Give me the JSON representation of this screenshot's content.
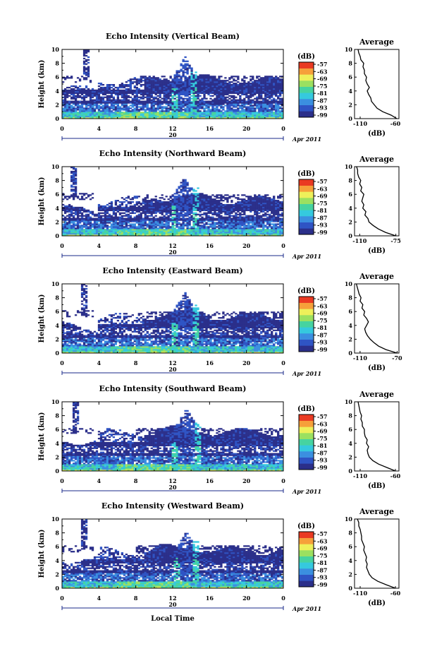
{
  "colors": {
    "colormap": [
      "#2b2f8a",
      "#2f54c4",
      "#3b8fe0",
      "#35c9de",
      "#46d3a0",
      "#9be060",
      "#eef05a",
      "#f6a03a",
      "#ea3a22"
    ],
    "background": "#ffffff",
    "axis": "#000000",
    "date_marker": "#1a2a8a"
  },
  "figure": {
    "colorbar_unit": "(dB)",
    "colorbar_ticks": [
      "-57",
      "-63",
      "-69",
      "-75",
      "-81",
      "-87",
      "-93",
      "-99"
    ],
    "time_tick_labels": [
      "0",
      "4",
      "8",
      "12",
      "16",
      "20",
      "0"
    ],
    "date_day": "20",
    "date_month": "Apr 2011",
    "height_ylabel": "Height (km)",
    "height_tick_labels": [
      "0",
      "2",
      "4",
      "6",
      "8",
      "10"
    ],
    "average_title": "Average",
    "average_xlabel": "(dB)",
    "xlabel": "Local Time"
  },
  "chart_data": [
    {
      "type": "heatmap",
      "title": "Echo Intensity (Vertical Beam)",
      "xlabel": "",
      "ylabel": "Height (km)",
      "xlim": [
        0,
        24
      ],
      "ylim": [
        0,
        10
      ],
      "colorbar_range": [
        -99,
        -57
      ],
      "features": {
        "main_top_km": 5.5,
        "upper_layer_km": [
          5.0,
          6.2
        ],
        "convection_hours": [
          12.0,
          14.7
        ],
        "convection_top_km": 9.0,
        "early_plume_hour": 2.6
      },
      "average_profile": {
        "xticks": [
          "-110",
          "-60"
        ],
        "xlim": [
          -118,
          -55
        ],
        "height": [
          0,
          0.5,
          1,
          1.5,
          2,
          2.5,
          3,
          3.5,
          4,
          4.5,
          5,
          5.5,
          6,
          6.5,
          7,
          7.5,
          8,
          8.5,
          9,
          9.5,
          10
        ],
        "value": [
          -58,
          -66,
          -78,
          -86,
          -90,
          -94,
          -95,
          -98,
          -100,
          -97,
          -100,
          -102,
          -101,
          -104,
          -104,
          -106,
          -105,
          -109,
          -110,
          -112,
          -113
        ]
      }
    },
    {
      "type": "heatmap",
      "title": "Echo Intensity (Northward Beam)",
      "xlabel": "",
      "ylabel": "Height (km)",
      "xlim": [
        0,
        24
      ],
      "ylim": [
        0,
        10
      ],
      "colorbar_range": [
        -99,
        -57
      ],
      "features": {
        "main_top_km": 5.2,
        "upper_layer_km": [
          4.8,
          6.0
        ],
        "convection_hours": [
          11.8,
          14.8
        ],
        "convection_top_km": 8.5,
        "early_plume_hour": 1.3
      },
      "average_profile": {
        "xticks": [
          "-110",
          "-75"
        ],
        "xlim": [
          -115,
          -72
        ],
        "height": [
          0,
          0.5,
          1,
          1.5,
          2,
          2.5,
          3,
          3.5,
          4,
          4.5,
          5,
          5.5,
          6,
          6.5,
          7,
          7.5,
          8,
          8.5,
          9,
          9.5,
          10
        ],
        "value": [
          -75,
          -85,
          -92,
          -97,
          -101,
          -102,
          -105,
          -104,
          -107,
          -106,
          -108,
          -107,
          -106,
          -109,
          -108,
          -110,
          -109,
          -111,
          -112,
          -112,
          -113
        ]
      }
    },
    {
      "type": "heatmap",
      "title": "Echo Intensity (Eastward Beam)",
      "xlabel": "",
      "ylabel": "Height (km)",
      "xlim": [
        0,
        24
      ],
      "ylim": [
        0,
        10
      ],
      "colorbar_range": [
        -99,
        -57
      ],
      "features": {
        "main_top_km": 5.3,
        "upper_layer_km": [
          4.9,
          6.1
        ],
        "convection_hours": [
          11.9,
          14.8
        ],
        "convection_top_km": 8.8,
        "early_plume_hour": 2.4
      },
      "average_profile": {
        "xticks": [
          "-110",
          "-70"
        ],
        "xlim": [
          -116,
          -68
        ],
        "height": [
          0,
          0.5,
          1,
          1.5,
          2,
          2.5,
          3,
          3.5,
          4,
          4.5,
          5,
          5.5,
          6,
          6.5,
          7,
          7.5,
          8,
          8.5,
          9,
          9.5,
          10
        ],
        "value": [
          -70,
          -82,
          -90,
          -95,
          -99,
          -102,
          -104,
          -105,
          -103,
          -101,
          -103,
          -106,
          -105,
          -108,
          -107,
          -110,
          -109,
          -111,
          -112,
          -113,
          -114
        ]
      }
    },
    {
      "type": "heatmap",
      "title": "Echo Intensity (Southward Beam)",
      "xlabel": "",
      "ylabel": "Height (km)",
      "xlim": [
        0,
        24
      ],
      "ylim": [
        0,
        10
      ],
      "colorbar_range": [
        -99,
        -57
      ],
      "features": {
        "main_top_km": 5.6,
        "upper_layer_km": [
          5.0,
          6.3
        ],
        "convection_hours": [
          12.0,
          15.0
        ],
        "convection_top_km": 9.0,
        "early_plume_hour": 1.5
      },
      "average_profile": {
        "xticks": [
          "-110",
          "-60"
        ],
        "xlim": [
          -118,
          -55
        ],
        "height": [
          0,
          0.5,
          1,
          1.5,
          2,
          2.5,
          3,
          3.5,
          4,
          4.5,
          5,
          5.5,
          6,
          6.5,
          7,
          7.5,
          8,
          8.5,
          9,
          9.5,
          10
        ],
        "value": [
          -60,
          -72,
          -84,
          -92,
          -97,
          -99,
          -100,
          -98,
          -101,
          -100,
          -103,
          -104,
          -104,
          -107,
          -107,
          -109,
          -108,
          -110,
          -111,
          -112,
          -113
        ]
      }
    },
    {
      "type": "heatmap",
      "title": "Echo Intensity (Westward Beam)",
      "xlabel": "Local Time",
      "ylabel": "Height (km)",
      "xlim": [
        0,
        24
      ],
      "ylim": [
        0,
        10
      ],
      "colorbar_range": [
        -99,
        -57
      ],
      "features": {
        "main_top_km": 5.4,
        "upper_layer_km": [
          5.0,
          6.2
        ],
        "convection_hours": [
          12.2,
          14.8
        ],
        "convection_top_km": 8.2,
        "early_plume_hour": 2.4
      },
      "average_profile": {
        "xticks": [
          "-110",
          "-60"
        ],
        "xlim": [
          -118,
          -55
        ],
        "height": [
          0,
          0.5,
          1,
          1.5,
          2,
          2.5,
          3,
          3.5,
          4,
          4.5,
          5,
          5.5,
          6,
          6.5,
          7,
          7.5,
          8,
          8.5,
          9,
          9.5,
          10
        ],
        "value": [
          -60,
          -73,
          -85,
          -93,
          -97,
          -99,
          -101,
          -100,
          -102,
          -101,
          -103,
          -105,
          -104,
          -106,
          -108,
          -108,
          -109,
          -110,
          -112,
          -112,
          -114
        ]
      }
    }
  ]
}
